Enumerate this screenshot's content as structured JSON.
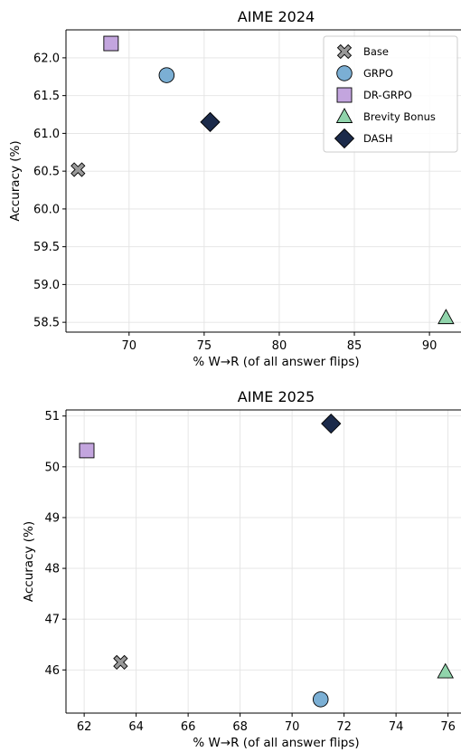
{
  "chart_data": [
    {
      "type": "scatter",
      "title": "AIME 2024",
      "xlabel": "% W→R (of all answer flips)",
      "ylabel": "Accuracy (%)",
      "xlim": [
        65.8,
        92.1
      ],
      "ylim": [
        58.37,
        62.37
      ],
      "xticks": [
        70,
        75,
        80,
        85,
        90
      ],
      "yticks": [
        58.5,
        59.0,
        59.5,
        60.0,
        60.5,
        61.0,
        61.5,
        62.0
      ],
      "ytick_decimals": 1,
      "grid": true,
      "legend_placement": "top-right",
      "legend": [
        "Base",
        "GRPO",
        "DR-GRPO",
        "Brevity Bonus",
        "DASH"
      ],
      "series": [
        {
          "name": "Base",
          "marker": "x",
          "color": "#999999",
          "x": [
            66.6
          ],
          "y": [
            60.52
          ]
        },
        {
          "name": "GRPO",
          "marker": "circle",
          "color": "#7bafd4",
          "x": [
            72.5
          ],
          "y": [
            61.77
          ]
        },
        {
          "name": "DR-GRPO",
          "marker": "square",
          "color": "#c3a5de",
          "x": [
            68.8
          ],
          "y": [
            62.19
          ]
        },
        {
          "name": "Brevity Bonus",
          "marker": "triangle",
          "color": "#90d4ab",
          "x": [
            91.1
          ],
          "y": [
            58.56
          ]
        },
        {
          "name": "DASH",
          "marker": "diamond",
          "color": "#1b2a4a",
          "x": [
            75.4
          ],
          "y": [
            61.15
          ]
        }
      ]
    },
    {
      "type": "scatter",
      "title": "AIME 2025",
      "xlabel": "% W→R (of all answer flips)",
      "ylabel": "Accuracy (%)",
      "xlim": [
        61.3,
        76.5
      ],
      "ylim": [
        45.15,
        51.12
      ],
      "xticks": [
        62,
        64,
        66,
        68,
        70,
        72,
        74,
        76
      ],
      "yticks": [
        46,
        47,
        48,
        49,
        50,
        51
      ],
      "ytick_decimals": 0,
      "grid": true,
      "legend": [],
      "series": [
        {
          "name": "Base",
          "marker": "x",
          "color": "#999999",
          "x": [
            63.4
          ],
          "y": [
            46.15
          ]
        },
        {
          "name": "GRPO",
          "marker": "circle",
          "color": "#7bafd4",
          "x": [
            71.1
          ],
          "y": [
            45.42
          ]
        },
        {
          "name": "DR-GRPO",
          "marker": "square",
          "color": "#c3a5de",
          "x": [
            62.1
          ],
          "y": [
            50.32
          ]
        },
        {
          "name": "Brevity Bonus",
          "marker": "triangle",
          "color": "#90d4ab",
          "x": [
            75.9
          ],
          "y": [
            45.96
          ]
        },
        {
          "name": "DASH",
          "marker": "diamond",
          "color": "#1b2a4a",
          "x": [
            71.5
          ],
          "y": [
            50.85
          ]
        }
      ]
    }
  ]
}
